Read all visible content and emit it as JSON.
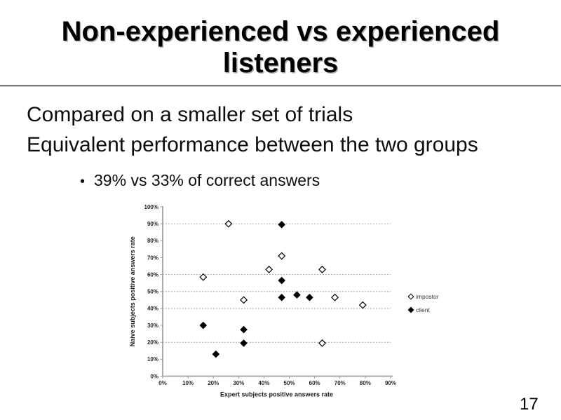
{
  "slide": {
    "title": "Non-experienced vs experienced listeners",
    "line1": "Compared on a smaller set of trials",
    "line2": "Equivalent performance between the two groups",
    "bullet_glyph": "•",
    "bullet_text": "39% vs 33% of correct answers",
    "page_number": "17"
  },
  "chart_data": {
    "type": "scatter",
    "title": "",
    "xlabel": "Expert subjects positive answers rate",
    "ylabel": "Naive subjects positive answers rate",
    "xlim": [
      0,
      90
    ],
    "ylim": [
      0,
      100
    ],
    "x_tick_step": 10,
    "y_tick_step": 10,
    "x_tick_labels": [
      "0%",
      "10%",
      "20%",
      "30%",
      "40%",
      "50%",
      "60%",
      "70%",
      "80%",
      "90%"
    ],
    "y_tick_labels": [
      "0%",
      "10%",
      "20%",
      "30%",
      "40%",
      "50%",
      "60%",
      "70%",
      "80%",
      "90%",
      "100%"
    ],
    "gridlines_y_percent": [
      20,
      40,
      50,
      60,
      90
    ],
    "grid_style": "dashed",
    "legend_position": "right",
    "series": [
      {
        "name": "impostor",
        "marker": "open-diamond",
        "points": [
          [
            16,
            58.5
          ],
          [
            26,
            90
          ],
          [
            32,
            45
          ],
          [
            42,
            63
          ],
          [
            47,
            71
          ],
          [
            63,
            63
          ],
          [
            63,
            19.5
          ],
          [
            68,
            46.5
          ],
          [
            79,
            42
          ]
        ]
      },
      {
        "name": "client",
        "marker": "filled-diamond",
        "points": [
          [
            16,
            30
          ],
          [
            21,
            13
          ],
          [
            32,
            27.5
          ],
          [
            32,
            19.5
          ],
          [
            47,
            89.5
          ],
          [
            47,
            56.5
          ],
          [
            47,
            46.5
          ],
          [
            53,
            48
          ],
          [
            58,
            46.5
          ]
        ]
      }
    ],
    "colors": {
      "marker": "#000000",
      "grid": "#a6a6a6",
      "axis": "#a0a0a0",
      "tick_label": "#262626"
    }
  }
}
